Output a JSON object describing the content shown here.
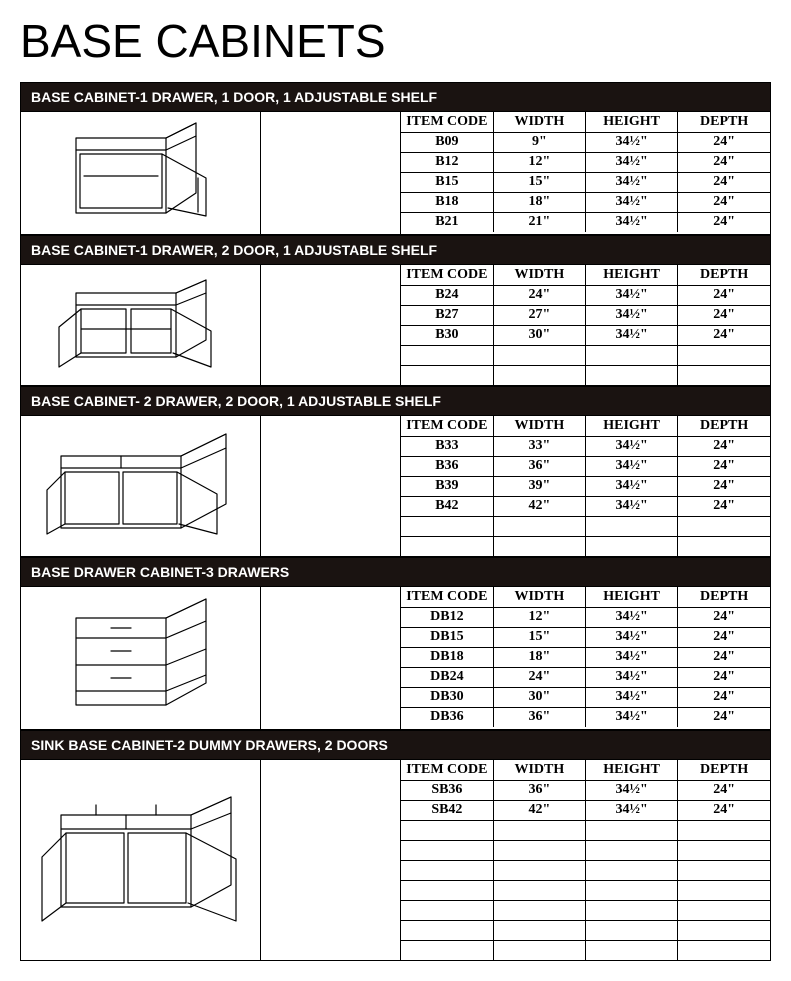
{
  "title": "BASE CABINETS",
  "columns": [
    "ITEM CODE",
    "WIDTH",
    "HEIGHT",
    "DEPTH"
  ],
  "colors": {
    "bar_bg": "#1a1311",
    "bar_text": "#ffffff",
    "page_bg": "#ffffff",
    "border": "#000000",
    "text": "#000000"
  },
  "sections": [
    {
      "heading": "BASE CABINET-1 DRAWER, 1 DOOR, 1 ADJUSTABLE SHELF",
      "illustration": "single-door",
      "min_rows": 5,
      "rows": [
        {
          "code": "B09",
          "width": "9\"",
          "height": "34½\"",
          "depth": "24\""
        },
        {
          "code": "B12",
          "width": "12\"",
          "height": "34½\"",
          "depth": "24\""
        },
        {
          "code": "B15",
          "width": "15\"",
          "height": "34½\"",
          "depth": "24\""
        },
        {
          "code": "B18",
          "width": "18\"",
          "height": "34½\"",
          "depth": "24\""
        },
        {
          "code": "B21",
          "width": "21\"",
          "height": "34½\"",
          "depth": "24\""
        }
      ]
    },
    {
      "heading": "BASE CABINET-1 DRAWER, 2 DOOR, 1 ADJUSTABLE SHELF",
      "illustration": "double-door",
      "min_rows": 5,
      "rows": [
        {
          "code": "B24",
          "width": "24\"",
          "height": "34½\"",
          "depth": "24\""
        },
        {
          "code": "B27",
          "width": "27\"",
          "height": "34½\"",
          "depth": "24\""
        },
        {
          "code": "B30",
          "width": "30\"",
          "height": "34½\"",
          "depth": "24\""
        }
      ]
    },
    {
      "heading": "BASE CABINET- 2 DRAWER, 2 DOOR, 1 ADJUSTABLE SHELF",
      "illustration": "two-drawer-double-door",
      "min_rows": 6,
      "rows": [
        {
          "code": "B33",
          "width": "33\"",
          "height": "34½\"",
          "depth": "24\""
        },
        {
          "code": "B36",
          "width": "36\"",
          "height": "34½\"",
          "depth": "24\""
        },
        {
          "code": "B39",
          "width": "39\"",
          "height": "34½\"",
          "depth": "24\""
        },
        {
          "code": "B42",
          "width": "42\"",
          "height": "34½\"",
          "depth": "24\""
        }
      ]
    },
    {
      "heading": "BASE DRAWER CABINET-3 DRAWERS",
      "illustration": "three-drawer",
      "min_rows": 6,
      "rows": [
        {
          "code": "DB12",
          "width": "12\"",
          "height": "34½\"",
          "depth": "24\""
        },
        {
          "code": "DB15",
          "width": "15\"",
          "height": "34½\"",
          "depth": "24\""
        },
        {
          "code": "DB18",
          "width": "18\"",
          "height": "34½\"",
          "depth": "24\""
        },
        {
          "code": "DB24",
          "width": "24\"",
          "height": "34½\"",
          "depth": "24\""
        },
        {
          "code": "DB30",
          "width": "30\"",
          "height": "34½\"",
          "depth": "24\""
        },
        {
          "code": "DB36",
          "width": "36\"",
          "height": "34½\"",
          "depth": "24\""
        }
      ]
    },
    {
      "heading": "SINK BASE CABINET-2 DUMMY DRAWERS, 2 DOORS",
      "illustration": "sink-base",
      "min_rows": 9,
      "rows": [
        {
          "code": "SB36",
          "width": "36\"",
          "height": "34½\"",
          "depth": "24\""
        },
        {
          "code": "SB42",
          "width": "42\"",
          "height": "34½\"",
          "depth": "24\""
        }
      ]
    }
  ]
}
